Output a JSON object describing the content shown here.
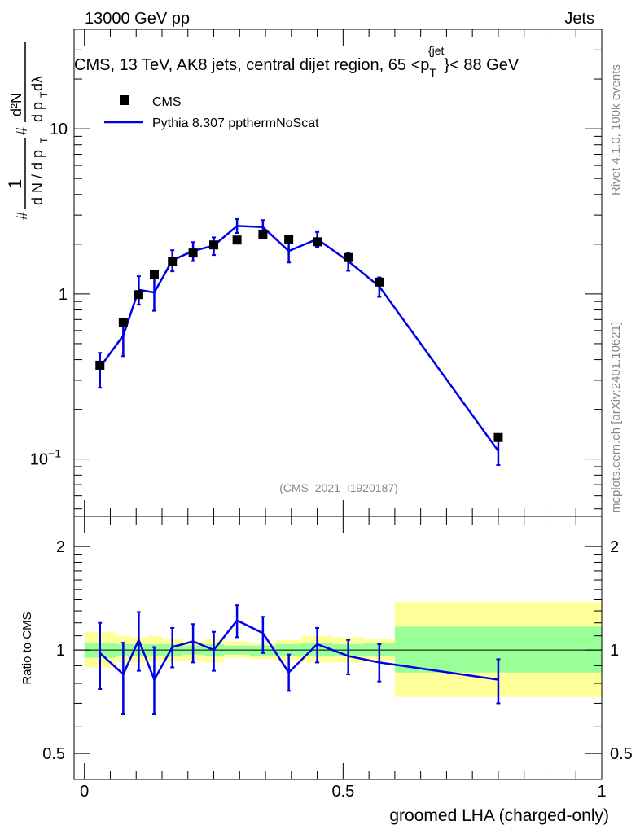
{
  "header": {
    "left": "13000 GeV pp",
    "right": "Jets"
  },
  "side_labels": {
    "rivet": "Rivet 4.1.0,  100k events",
    "mcplots": "mcplots.cern.ch [arXiv:2401.10621]"
  },
  "colors": {
    "data": "#000000",
    "mc": "#0000e6",
    "band_inner": "#99ff99",
    "band_outer": "#ffff99"
  },
  "chart_data": [
    {
      "type": "scatter",
      "title": "CMS, 13 TeV, AK8 jets, central dijet region, 65 <p_T^{jet}< 88 GeV",
      "title_parts": {
        "main": "CMS, 13 TeV, AK8 jets, central dijet region, 65 <p",
        "sub": "T",
        "sup": "{jet",
        "tail": "}< 88 GeV"
      },
      "watermark": "(CMS_2021_I1920187)",
      "ylabel": "1/(dN/dp_T) d²N/(dp_T dλ)",
      "ylabel_parts": {
        "frac_top": "1",
        "frac_bottom": "d N / d p",
        "sub_T": "T",
        "hash": "#",
        "d2N_top": "d²N",
        "d2N_bottom": "d p",
        "dl": " dλ"
      },
      "yscale": "log",
      "ylim": [
        0.045,
        40
      ],
      "yticks": [
        {
          "value": 0.1,
          "label": "10",
          "exp": "−1"
        },
        {
          "value": 1,
          "label": "1",
          "exp": ""
        },
        {
          "value": 10,
          "label": "10",
          "exp": ""
        }
      ],
      "xlim": [
        -0.02,
        1.0
      ],
      "legend_position": "top-left",
      "series": [
        {
          "name": "CMS",
          "kind": "markers",
          "x": [
            0.03,
            0.075,
            0.105,
            0.135,
            0.17,
            0.21,
            0.25,
            0.295,
            0.345,
            0.395,
            0.45,
            0.51,
            0.57,
            0.8
          ],
          "y": [
            0.37,
            0.67,
            0.99,
            1.31,
            1.57,
            1.77,
            1.98,
            2.12,
            2.28,
            2.15,
            2.07,
            1.66,
            1.18,
            0.135
          ],
          "xerr": [
            0.015,
            0.015,
            0.015,
            0.015,
            0.02,
            0.02,
            0.02,
            0.025,
            0.025,
            0.025,
            0.03,
            0.03,
            0.03,
            0.2
          ]
        },
        {
          "name": "Pythia 8.307 ppthermNoScat",
          "kind": "line",
          "x": [
            0.03,
            0.075,
            0.105,
            0.135,
            0.17,
            0.21,
            0.25,
            0.295,
            0.345,
            0.395,
            0.45,
            0.51,
            0.57,
            0.8
          ],
          "y": [
            0.36,
            0.56,
            1.06,
            1.02,
            1.6,
            1.82,
            1.96,
            2.58,
            2.54,
            1.82,
            2.15,
            1.58,
            1.11,
            0.112
          ],
          "ylow": [
            0.27,
            0.42,
            0.86,
            0.79,
            1.37,
            1.58,
            1.72,
            2.34,
            2.28,
            1.55,
            1.93,
            1.38,
            0.96,
            0.092
          ],
          "yhigh": [
            0.44,
            0.71,
            1.28,
            1.3,
            1.84,
            2.06,
            2.2,
            2.84,
            2.8,
            2.09,
            2.37,
            1.78,
            1.26,
            0.133
          ]
        }
      ]
    },
    {
      "type": "line",
      "ylabel": "Ratio to CMS",
      "xlabel": "groomed LHA (charged-only)",
      "yscale": "log",
      "ylim": [
        0.42,
        2.45
      ],
      "yticks": [
        {
          "value": 0.5,
          "label": "0.5"
        },
        {
          "value": 1,
          "label": "1"
        },
        {
          "value": 2,
          "label": "2"
        }
      ],
      "xlim": [
        -0.02,
        1.0
      ],
      "xticks": [
        {
          "value": 0,
          "label": "0"
        },
        {
          "value": 0.5,
          "label": "0.5"
        },
        {
          "value": 1,
          "label": "1"
        }
      ],
      "reference_line": 1,
      "band_bins": [
        {
          "x0": 0.0,
          "x1": 0.06,
          "inner": [
            0.95,
            1.05
          ],
          "outer": [
            0.89,
            1.13
          ]
        },
        {
          "x0": 0.06,
          "x1": 0.09,
          "inner": [
            0.96,
            1.04
          ],
          "outer": [
            0.92,
            1.1
          ]
        },
        {
          "x0": 0.09,
          "x1": 0.12,
          "inner": [
            0.96,
            1.04
          ],
          "outer": [
            0.92,
            1.09
          ]
        },
        {
          "x0": 0.12,
          "x1": 0.15,
          "inner": [
            0.96,
            1.04
          ],
          "outer": [
            0.93,
            1.1
          ]
        },
        {
          "x0": 0.15,
          "x1": 0.19,
          "inner": [
            0.96,
            1.04
          ],
          "outer": [
            0.93,
            1.08
          ]
        },
        {
          "x0": 0.19,
          "x1": 0.23,
          "inner": [
            0.97,
            1.03
          ],
          "outer": [
            0.93,
            1.06
          ]
        },
        {
          "x0": 0.23,
          "x1": 0.27,
          "inner": [
            0.96,
            1.04
          ],
          "outer": [
            0.92,
            1.08
          ]
        },
        {
          "x0": 0.27,
          "x1": 0.32,
          "inner": [
            0.97,
            1.03
          ],
          "outer": [
            0.95,
            1.06
          ]
        },
        {
          "x0": 0.32,
          "x1": 0.37,
          "inner": [
            0.96,
            1.03
          ],
          "outer": [
            0.94,
            1.05
          ]
        },
        {
          "x0": 0.37,
          "x1": 0.42,
          "inner": [
            0.96,
            1.04
          ],
          "outer": [
            0.93,
            1.07
          ]
        },
        {
          "x0": 0.42,
          "x1": 0.48,
          "inner": [
            0.96,
            1.05
          ],
          "outer": [
            0.92,
            1.1
          ]
        },
        {
          "x0": 0.48,
          "x1": 0.54,
          "inner": [
            0.96,
            1.04
          ],
          "outer": [
            0.92,
            1.09
          ]
        },
        {
          "x0": 0.54,
          "x1": 0.6,
          "inner": [
            0.96,
            1.05
          ],
          "outer": [
            0.93,
            1.08
          ]
        },
        {
          "x0": 0.6,
          "x1": 1.0,
          "inner": [
            0.86,
            1.17
          ],
          "outer": [
            0.73,
            1.38
          ]
        }
      ],
      "series": [
        {
          "name": "Pythia 8.307 ppthermNoScat / CMS",
          "x": [
            0.03,
            0.075,
            0.105,
            0.135,
            0.17,
            0.21,
            0.25,
            0.295,
            0.345,
            0.395,
            0.45,
            0.51,
            0.57,
            0.8
          ],
          "y": [
            0.98,
            0.85,
            1.07,
            0.82,
            1.02,
            1.06,
            1.0,
            1.22,
            1.12,
            0.86,
            1.04,
            0.96,
            0.92,
            0.82
          ],
          "ylow": [
            0.77,
            0.65,
            0.87,
            0.65,
            0.89,
            0.92,
            0.87,
            1.09,
            0.98,
            0.76,
            0.92,
            0.85,
            0.81,
            0.7
          ],
          "yhigh": [
            1.2,
            1.05,
            1.29,
            1.02,
            1.16,
            1.19,
            1.13,
            1.35,
            1.25,
            0.97,
            1.16,
            1.07,
            1.04,
            0.94
          ]
        }
      ]
    }
  ]
}
